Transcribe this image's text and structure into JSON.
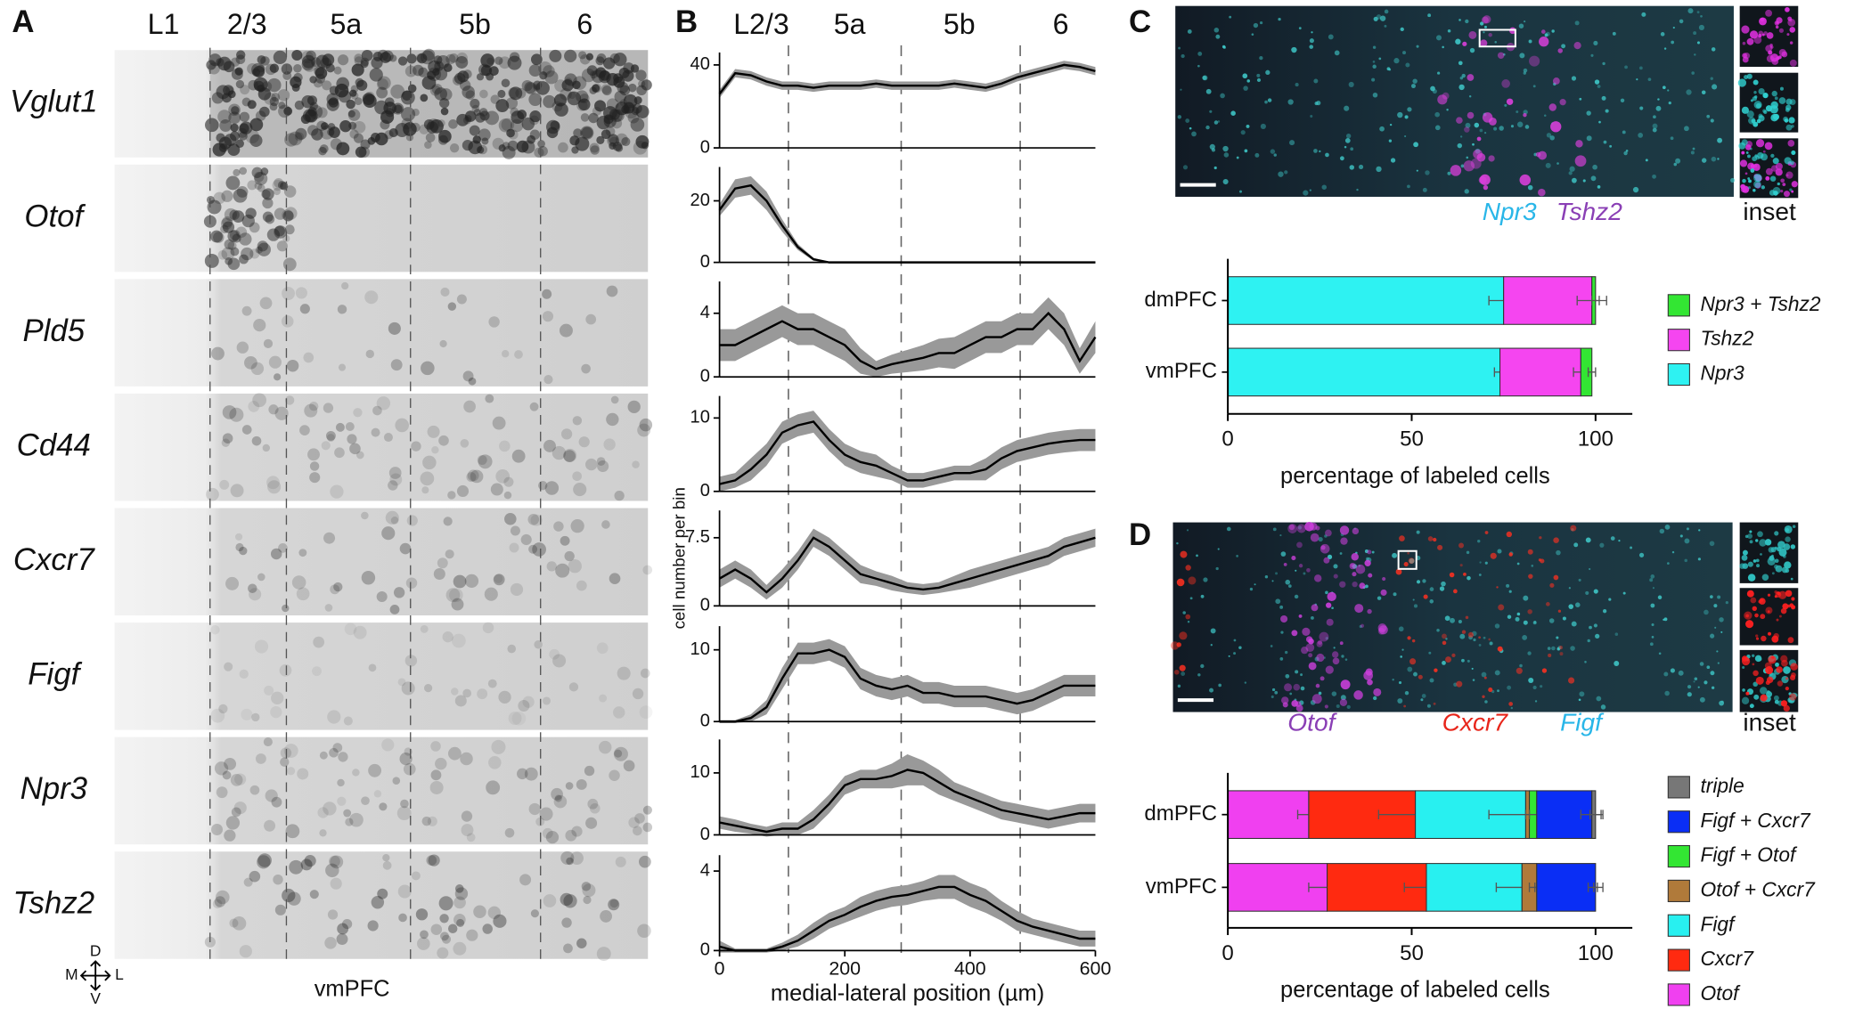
{
  "panels": {
    "A": {
      "letter": "A",
      "layers": [
        "L1",
        "2/3",
        "5a",
        "5b",
        "6"
      ],
      "genes": [
        "Vglut1",
        "Otof",
        "Pld5",
        "Cd44",
        "Cxcr7",
        "Figf",
        "Npr3",
        "Tshz2"
      ],
      "compass": {
        "d": "D",
        "m": "M",
        "l": "L",
        "v": "V"
      },
      "region": "vmPFC"
    },
    "B": {
      "letter": "B",
      "layers": [
        "L2/3",
        "5a",
        "5b",
        "6"
      ],
      "boundaries": [
        110,
        290,
        480
      ]
    },
    "C": {
      "letter": "C",
      "image_labels": [
        "Npr3",
        "Tshz2"
      ],
      "inset": "inset"
    },
    "D": {
      "letter": "D",
      "image_labels": [
        "Otof",
        "Cxcr7",
        "Figf"
      ],
      "inset": "inset"
    }
  },
  "chart_data": [
    {
      "type": "line",
      "color": "#000000",
      "band_color": "#999999",
      "x": [
        0,
        25,
        50,
        75,
        100,
        125,
        150,
        175,
        200,
        225,
        250,
        275,
        300,
        325,
        350,
        375,
        400,
        425,
        450,
        475,
        500,
        525,
        550,
        575,
        600
      ],
      "values": [
        26,
        36,
        35,
        32,
        30,
        30,
        29,
        30,
        30,
        30,
        31,
        30,
        30,
        30,
        30,
        31,
        30,
        29,
        31,
        34,
        36,
        38,
        40,
        39,
        37
      ],
      "errors": [
        2,
        2,
        2,
        2,
        2,
        2,
        2,
        2,
        2,
        2,
        2,
        2,
        2,
        2,
        2,
        2,
        2,
        2,
        2,
        2,
        2,
        2,
        2,
        2,
        2
      ],
      "xlim": [
        0,
        600
      ],
      "ylim": [
        0,
        46
      ],
      "yticks": [
        0,
        40
      ]
    },
    {
      "type": "line",
      "color": "#000000",
      "band_color": "#999999",
      "x": [
        0,
        25,
        50,
        75,
        100,
        125,
        150,
        175,
        200,
        225,
        250,
        275,
        300,
        325,
        350,
        375,
        400,
        425,
        450,
        475,
        500,
        525,
        550,
        575,
        600
      ],
      "values": [
        17,
        24,
        25,
        20,
        12,
        5,
        1,
        0,
        0,
        0,
        0,
        0,
        0,
        0,
        0,
        0,
        0,
        0,
        0,
        0,
        0,
        0,
        0,
        0,
        0
      ],
      "errors": [
        2,
        3,
        3,
        3,
        2,
        1,
        0.5,
        0.2,
        0.2,
        0.2,
        0.2,
        0.2,
        0.2,
        0.2,
        0.2,
        0.2,
        0.2,
        0.2,
        0.2,
        0.2,
        0.2,
        0.2,
        0.2,
        0.2,
        0.2
      ],
      "xlim": [
        0,
        600
      ],
      "ylim": [
        0,
        31
      ],
      "yticks": [
        0,
        20
      ]
    },
    {
      "type": "line",
      "color": "#000000",
      "band_color": "#999999",
      "x": [
        0,
        25,
        50,
        75,
        100,
        125,
        150,
        175,
        200,
        225,
        250,
        275,
        300,
        325,
        350,
        375,
        400,
        425,
        450,
        475,
        500,
        525,
        550,
        575,
        600
      ],
      "values": [
        2,
        2,
        2.5,
        3,
        3.5,
        3,
        3,
        2.5,
        2,
        1,
        0.5,
        0.8,
        1,
        1.2,
        1.5,
        1.5,
        2,
        2.5,
        2.5,
        3,
        3,
        4,
        3,
        1,
        2.5
      ],
      "errors": [
        1,
        1,
        1,
        1,
        1,
        1,
        1,
        1,
        1,
        0.8,
        0.5,
        0.6,
        0.7,
        0.8,
        0.9,
        1,
        1,
        1,
        1,
        1,
        1,
        1,
        1,
        0.8,
        1
      ],
      "xlim": [
        0,
        600
      ],
      "ylim": [
        0,
        6
      ],
      "yticks": [
        0,
        4
      ]
    },
    {
      "type": "line",
      "color": "#000000",
      "band_color": "#999999",
      "x": [
        0,
        25,
        50,
        75,
        100,
        125,
        150,
        175,
        200,
        225,
        250,
        275,
        300,
        325,
        350,
        375,
        400,
        425,
        450,
        475,
        500,
        525,
        550,
        575,
        600
      ],
      "values": [
        1,
        1.5,
        3,
        5,
        8,
        9,
        9.5,
        7,
        5,
        4,
        3.5,
        2.5,
        1.5,
        1.5,
        2,
        2.5,
        2.5,
        3,
        4.5,
        5.5,
        6,
        6.5,
        6.8,
        7,
        7
      ],
      "errors": [
        1,
        1,
        1.5,
        1.5,
        1.5,
        1.5,
        1.5,
        1.5,
        1.5,
        1.5,
        1.5,
        1,
        1,
        1,
        1,
        1,
        1,
        1.5,
        1.5,
        1.5,
        1.5,
        1.5,
        1.5,
        1.5,
        1.5
      ],
      "xlim": [
        0,
        600
      ],
      "ylim": [
        0,
        13
      ],
      "yticks": [
        0,
        10
      ]
    },
    {
      "type": "line",
      "color": "#000000",
      "band_color": "#999999",
      "x": [
        0,
        25,
        50,
        75,
        100,
        125,
        150,
        175,
        200,
        225,
        250,
        275,
        300,
        325,
        350,
        375,
        400,
        425,
        450,
        475,
        500,
        525,
        550,
        575,
        600
      ],
      "values": [
        3,
        4,
        3,
        1.5,
        3,
        5,
        7.5,
        6.5,
        5,
        3.5,
        3,
        2.5,
        2,
        1.8,
        2,
        2.5,
        3,
        3.5,
        4,
        4.5,
        5,
        5.5,
        6.5,
        7,
        7.5
      ],
      "errors": [
        1,
        1,
        1,
        0.8,
        1,
        1,
        1,
        1,
        1,
        1,
        0.8,
        0.8,
        0.6,
        0.6,
        0.6,
        0.8,
        1,
        1,
        1,
        1,
        1,
        1,
        1,
        1,
        1
      ],
      "xlim": [
        0,
        600
      ],
      "ylim": [
        0,
        10.5
      ],
      "yticks": [
        0,
        7.5
      ],
      "ylabel": "cell number per bin"
    },
    {
      "type": "line",
      "color": "#000000",
      "band_color": "#999999",
      "x": [
        0,
        25,
        50,
        75,
        100,
        125,
        150,
        175,
        200,
        225,
        250,
        275,
        300,
        325,
        350,
        375,
        400,
        425,
        450,
        475,
        500,
        525,
        550,
        575,
        600
      ],
      "values": [
        0,
        0,
        0.5,
        2,
        6,
        9.5,
        9.5,
        10,
        9,
        6,
        5,
        4.5,
        5,
        4,
        4,
        3.5,
        3.5,
        3.5,
        3,
        2.5,
        3,
        4,
        5,
        5,
        5
      ],
      "errors": [
        0.2,
        0.2,
        0.5,
        1,
        1.5,
        1.5,
        1.5,
        1.5,
        1.5,
        1.5,
        1.5,
        1.5,
        1.5,
        1.5,
        1.5,
        1.5,
        1.5,
        1.5,
        1.5,
        1.5,
        1.5,
        1.5,
        1.5,
        1.5,
        1.5
      ],
      "xlim": [
        0,
        600
      ],
      "ylim": [
        0,
        13.3
      ],
      "yticks": [
        0,
        10
      ]
    },
    {
      "type": "line",
      "color": "#000000",
      "band_color": "#999999",
      "x": [
        0,
        25,
        50,
        75,
        100,
        125,
        150,
        175,
        200,
        225,
        250,
        275,
        300,
        325,
        350,
        375,
        400,
        425,
        450,
        475,
        500,
        525,
        550,
        575,
        600
      ],
      "values": [
        2,
        1.5,
        1,
        0.5,
        1,
        1,
        2.5,
        5,
        8,
        9,
        9,
        9.5,
        10.5,
        10,
        8.5,
        7,
        6,
        5,
        4,
        3.5,
        3,
        2.5,
        3,
        3.5,
        3.5
      ],
      "errors": [
        1,
        1,
        0.8,
        0.8,
        1,
        1,
        1.5,
        1.5,
        1.5,
        1.5,
        1.5,
        2,
        2.5,
        2,
        2,
        1.5,
        1.5,
        1.5,
        1.5,
        1.5,
        1.5,
        1.5,
        1.5,
        1.5,
        1.5
      ],
      "xlim": [
        0,
        600
      ],
      "ylim": [
        0,
        15.4
      ],
      "yticks": [
        0,
        10
      ]
    },
    {
      "type": "line",
      "color": "#000000",
      "band_color": "#999999",
      "x": [
        0,
        25,
        50,
        75,
        100,
        125,
        150,
        175,
        200,
        225,
        250,
        275,
        300,
        325,
        350,
        375,
        400,
        425,
        450,
        475,
        500,
        525,
        550,
        575,
        600
      ],
      "values": [
        0.2,
        0,
        0,
        0,
        0.2,
        0.5,
        1,
        1.5,
        1.8,
        2.2,
        2.5,
        2.7,
        2.8,
        3,
        3.2,
        3.2,
        2.8,
        2.5,
        2,
        1.5,
        1.2,
        1,
        0.8,
        0.6,
        0.6
      ],
      "errors": [
        0.3,
        0.1,
        0.1,
        0.1,
        0.2,
        0.3,
        0.4,
        0.4,
        0.4,
        0.5,
        0.5,
        0.5,
        0.5,
        0.5,
        0.6,
        0.6,
        0.6,
        0.6,
        0.5,
        0.5,
        0.4,
        0.4,
        0.4,
        0.4,
        0.4
      ],
      "xlim": [
        0,
        600
      ],
      "ylim": [
        0,
        4.8
      ],
      "yticks": [
        0,
        4
      ],
      "xticks": [
        0,
        200,
        400,
        600
      ],
      "xlabel": "medial-lateral position (µm)"
    },
    {
      "type": "bar",
      "horizontal": true,
      "stacked": true,
      "categories": [
        "dmPFC",
        "vmPFC"
      ],
      "series": [
        {
          "name": "Npr3",
          "color": "#2ef2f2",
          "values": [
            75,
            74
          ],
          "errors": [
            4,
            1.5
          ]
        },
        {
          "name": "Tshz2",
          "color": "#f545f0",
          "values": [
            24,
            22
          ],
          "errors": [
            4,
            2
          ]
        },
        {
          "name": "Npr3 + Tshz2",
          "color": "#33e633",
          "values": [
            1,
            3
          ],
          "errors": [
            1,
            1
          ]
        }
      ],
      "xlim": [
        0,
        110
      ],
      "xticks": [
        0,
        50,
        100
      ],
      "xlabel": "percentage of labeled cells"
    },
    {
      "type": "bar",
      "horizontal": true,
      "stacked": true,
      "categories": [
        "dmPFC",
        "vmPFC"
      ],
      "series": [
        {
          "name": "Otof",
          "color": "#f040f0",
          "values": [
            22,
            27
          ],
          "errors": [
            3,
            5
          ]
        },
        {
          "name": "Cxcr7",
          "color": "#ff2a10",
          "values": [
            29,
            27
          ],
          "errors": [
            10,
            6
          ]
        },
        {
          "name": "Figf",
          "color": "#28f0f0",
          "values": [
            30,
            26
          ],
          "errors": [
            10,
            7
          ]
        },
        {
          "name": "Otof + Cxcr7",
          "color": "#b07a3a",
          "values": [
            1,
            4
          ],
          "errors": [
            1,
            2
          ]
        },
        {
          "name": "Figf + Otof",
          "color": "#33e633",
          "values": [
            2,
            0
          ],
          "errors": [
            2,
            0.5
          ]
        },
        {
          "name": "Figf + Cxcr7",
          "color": "#0a2ef5",
          "values": [
            15,
            16
          ],
          "errors": [
            3,
            2
          ]
        },
        {
          "name": "triple",
          "color": "#777777",
          "values": [
            1,
            0
          ],
          "errors": [
            1.5,
            0.5
          ]
        }
      ],
      "xlim": [
        0,
        110
      ],
      "xticks": [
        0,
        50,
        100
      ],
      "xlabel": "percentage of labeled cells"
    }
  ]
}
